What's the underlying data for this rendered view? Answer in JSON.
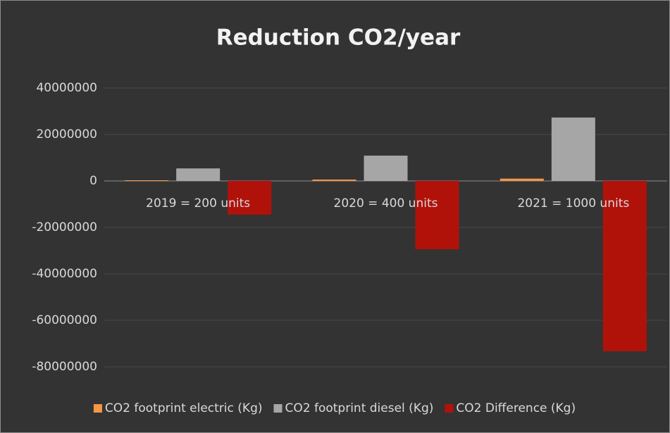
{
  "chart_data": {
    "type": "bar",
    "title": "Reduction CO2/year",
    "categories": [
      "2019 = 200 units",
      "2020 = 400 units",
      "2021 = 1000 units"
    ],
    "series": [
      {
        "name": "CO2 footprint electric (Kg)",
        "color": "#f79646",
        "values": [
          300000,
          600000,
          1000000
        ]
      },
      {
        "name": "CO2 footprint diesel (Kg)",
        "color": "#a6a6a6",
        "values": [
          5400000,
          10900000,
          27300000
        ]
      },
      {
        "name": "CO2 Difference (Kg)",
        "color": "#b0120a",
        "values": [
          -14500000,
          -29400000,
          -73300000
        ]
      }
    ],
    "ylim": [
      -80000000,
      40000000
    ],
    "yticks": [
      -80000000,
      -60000000,
      -40000000,
      -20000000,
      0,
      20000000,
      40000000
    ],
    "grid": true,
    "legend": "bottom"
  }
}
